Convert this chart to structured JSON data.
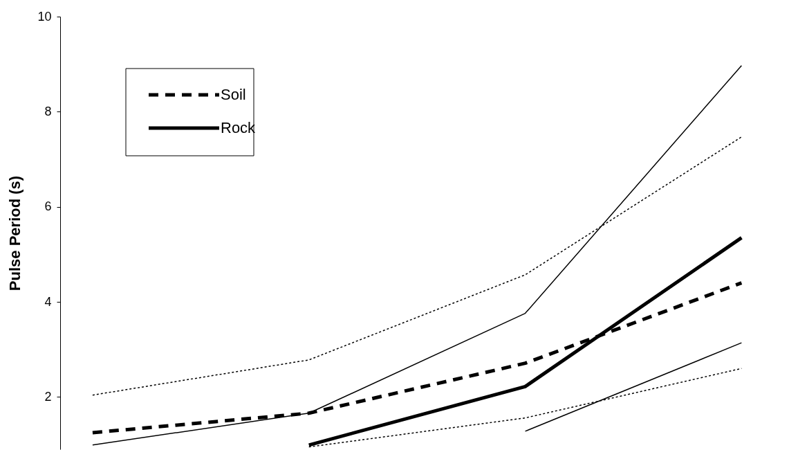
{
  "chart_data": {
    "type": "line",
    "ylabel": "Pulse Period (s)",
    "categories": [
      null,
      null,
      null,
      null
    ],
    "series": [
      {
        "color": "#000000",
        "line_style": "dotted",
        "values": [
          2.04,
          2.78,
          4.57,
          7.47
        ]
      },
      {
        "name": "Soil",
        "color": "#000000",
        "line_style": "dashed",
        "values": [
          1.25,
          1.66,
          2.71,
          4.4
        ]
      },
      {
        "color": "#000000",
        "line_style": "dotted",
        "values": [
          null,
          0.95,
          1.56,
          2.6
        ]
      },
      {
        "color": "#000000",
        "line_style": "solid",
        "values": [
          0.99,
          1.66,
          3.76,
          8.97
        ]
      },
      {
        "name": "Rock",
        "color": "#000000",
        "line_style": "solid",
        "values": [
          null,
          0.99,
          2.22,
          5.35
        ]
      },
      {
        "color": "#000000",
        "line_style": "solid",
        "values": [
          null,
          null,
          1.28,
          3.14
        ]
      }
    ],
    "ylim": [
      0.9,
      10
    ],
    "yticks": [
      2,
      4,
      6,
      8,
      10
    ],
    "tick_labels": "y",
    "grid": false,
    "legend": "top left",
    "marker": "none"
  }
}
